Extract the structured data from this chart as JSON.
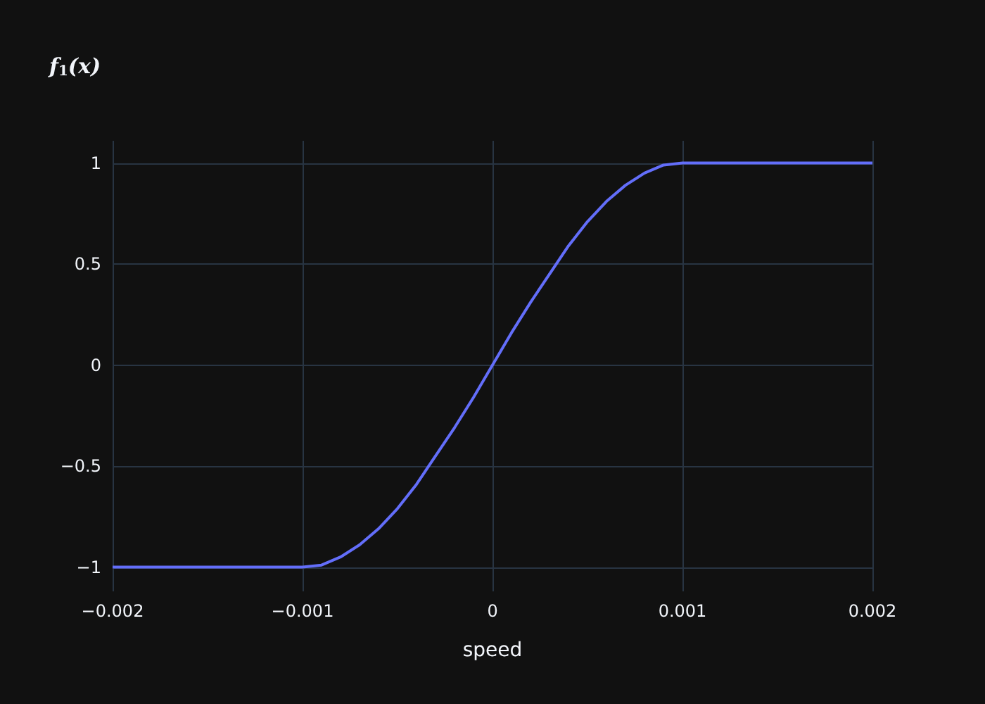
{
  "chart_data": {
    "type": "line",
    "title": "f$_{1}$(x)",
    "xlabel": "speed",
    "x": [
      -0.002,
      -0.0015,
      -0.001,
      -0.0009,
      -0.0008,
      -0.0007,
      -0.0006,
      -0.0005,
      -0.0004,
      -0.0003,
      -0.0002,
      -0.0001,
      0,
      0.0001,
      0.0002,
      0.0003,
      0.0004,
      0.0005,
      0.0006,
      0.0007,
      0.0008,
      0.0009,
      0.001,
      0.0015,
      0.002
    ],
    "series": [
      {
        "color": "#636efa",
        "values": [
          -1,
          -1,
          -1,
          -0.99,
          -0.95,
          -0.89,
          -0.81,
          -0.71,
          -0.59,
          -0.45,
          -0.31,
          -0.16,
          0,
          0.16,
          0.31,
          0.45,
          0.59,
          0.71,
          0.81,
          0.89,
          0.95,
          0.99,
          1,
          1,
          1
        ]
      }
    ],
    "xlim": [
      -0.002,
      0.002
    ],
    "ylim": [
      -1.12,
      1.11
    ],
    "xticks": [
      {
        "value": -0.002,
        "label": "−0.002"
      },
      {
        "value": -0.001,
        "label": "−0.001"
      },
      0,
      0.001,
      0.002
    ],
    "yticks": [
      {
        "value": -1,
        "label": "−1"
      },
      {
        "value": -0.5,
        "label": "−0.5"
      },
      0,
      0.5,
      1
    ],
    "grid": true,
    "marker": "none",
    "line_style": "solid"
  }
}
